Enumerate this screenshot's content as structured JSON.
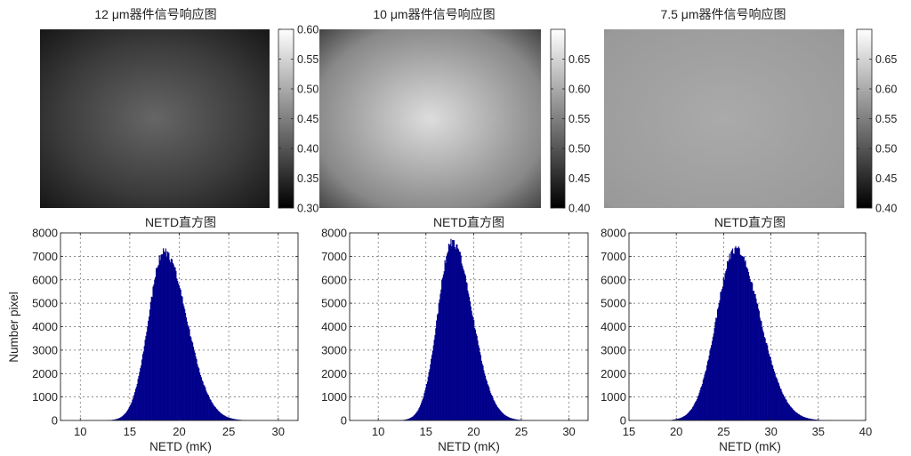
{
  "chart_data": [
    {
      "type": "heatmap",
      "title": "12 μm器件信号响应图",
      "colorbar": {
        "range": [
          0.3,
          0.6
        ],
        "ticks": [
          "0.60",
          "0.55",
          "0.50",
          "0.45",
          "0.40",
          "0.35",
          "0.30"
        ],
        "colormap": "gray"
      },
      "image": {
        "center_value": 0.42,
        "edge_value": 0.32,
        "falloff": 0.55
      }
    },
    {
      "type": "heatmap",
      "title": "10 μm器件信号响应图",
      "colorbar": {
        "range": [
          0.4,
          0.7
        ],
        "ticks": [
          "0.65",
          "0.60",
          "0.55",
          "0.50",
          "0.45",
          "0.40"
        ],
        "colormap": "gray"
      },
      "image": {
        "center_value": 0.66,
        "edge_value": 0.46,
        "falloff": 0.7
      }
    },
    {
      "type": "heatmap",
      "title": "7.5 μm器件信号响应图",
      "colorbar": {
        "range": [
          0.4,
          0.7
        ],
        "ticks": [
          "0.65",
          "0.60",
          "0.55",
          "0.50",
          "0.45",
          "0.40"
        ],
        "colormap": "gray"
      },
      "image": {
        "center_value": 0.6,
        "edge_value": 0.56,
        "falloff": 0.9
      }
    },
    {
      "type": "bar",
      "subtype": "histogram",
      "title": "NETD直方图",
      "xlabel": "NETD (mK)",
      "ylabel": "Number pixel",
      "xlim": [
        8,
        32
      ],
      "ylim": [
        0,
        8000
      ],
      "xticks": [
        10,
        15,
        20,
        25,
        30
      ],
      "yticks": [
        0,
        1000,
        2000,
        3000,
        4000,
        5000,
        6000,
        7000,
        8000
      ],
      "grid": true,
      "color": "#00008b",
      "distribution": {
        "peak_x": 18.4,
        "peak_y": 7200,
        "sigma_left": 1.55,
        "sigma_right": 2.3,
        "x_min": 12.5,
        "x_max": 30
      }
    },
    {
      "type": "bar",
      "subtype": "histogram",
      "title": "NETD直方图",
      "xlabel": "NETD (mK)",
      "ylabel": "",
      "xlim": [
        7,
        32
      ],
      "ylim": [
        0,
        8000
      ],
      "xticks": [
        10,
        15,
        20,
        25,
        30
      ],
      "yticks": [
        0,
        1000,
        2000,
        3000,
        4000,
        5000,
        6000,
        7000,
        8000
      ],
      "grid": true,
      "color": "#00008b",
      "distribution": {
        "peak_x": 17.7,
        "peak_y": 7600,
        "sigma_left": 1.5,
        "sigma_right": 2.1,
        "x_min": 11.5,
        "x_max": 30
      }
    },
    {
      "type": "bar",
      "subtype": "histogram",
      "title": "NETD直方图",
      "xlabel": "NETD (mK)",
      "ylabel": "",
      "xlim": [
        15,
        40
      ],
      "ylim": [
        0,
        8000
      ],
      "xticks": [
        15,
        20,
        25,
        30,
        35,
        40
      ],
      "yticks": [
        0,
        1000,
        2000,
        3000,
        4000,
        5000,
        6000,
        7000,
        8000
      ],
      "grid": true,
      "color": "#00008b",
      "distribution": {
        "peak_x": 26.2,
        "peak_y": 7300,
        "sigma_left": 2.0,
        "sigma_right": 2.6,
        "x_min": 19.5,
        "x_max": 37
      }
    }
  ]
}
